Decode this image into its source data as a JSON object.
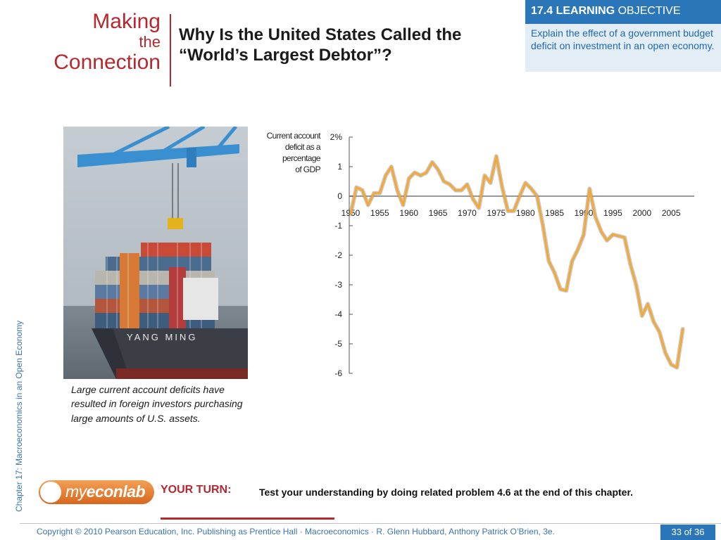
{
  "header": {
    "section": {
      "line1": "Making",
      "line2": "the",
      "line3": "Connection"
    },
    "title": "Why Is the United States Called the “World’s Largest Debtor”?"
  },
  "learning_objective": {
    "label_bold": "17.4 LEARNING",
    "label_rest": "OBJECTIVE",
    "text": "Explain the effect of a government budget deficit on investment in an open economy."
  },
  "sidebar_text": "Chapter 17:  Macroeconomics in an Open Economy",
  "photo": {
    "ship_name": "YANG MING",
    "caption": "Large current account deficits have resulted in foreign investors purchasing large amounts of U.S. assets."
  },
  "chart_data": {
    "type": "line",
    "ylabel": "Current account deficit as a percentage of GDP",
    "y_ticks": [
      "2%",
      "1",
      "0",
      "-1",
      "-2",
      "-3",
      "-4",
      "-5",
      "-6"
    ],
    "ylim": [
      -6,
      2
    ],
    "x_ticks": [
      "1950",
      "1955",
      "1960",
      "1965",
      "1970",
      "1975",
      "1980",
      "1985",
      "1990",
      "1995",
      "2000",
      "2005"
    ],
    "xlim": [
      1950,
      2008
    ],
    "color": "#f2a93b",
    "series": [
      {
        "x": [
          1950,
          1951,
          1952,
          1953,
          1954,
          1955,
          1956,
          1957,
          1958,
          1959,
          1960,
          1961,
          1962,
          1963,
          1964,
          1965,
          1966,
          1967,
          1968,
          1969,
          1970,
          1971,
          1972,
          1973,
          1974,
          1975,
          1976,
          1977,
          1978,
          1979,
          1980,
          1981,
          1982,
          1983,
          1984,
          1985,
          1986,
          1987,
          1988,
          1989,
          1990,
          1991,
          1992,
          1993,
          1994,
          1995,
          1996,
          1997,
          1998,
          1999,
          2000,
          2001,
          2002,
          2003,
          2004,
          2005,
          2006,
          2007
        ],
        "y": [
          -0.6,
          0.3,
          0.2,
          -0.3,
          0.1,
          0.1,
          0.7,
          1.0,
          0.2,
          -0.3,
          0.6,
          0.8,
          0.7,
          0.8,
          1.15,
          0.9,
          0.5,
          0.4,
          0.2,
          0.2,
          0.4,
          -0.1,
          -0.4,
          0.7,
          0.45,
          1.35,
          0.3,
          -0.5,
          -0.5,
          0.0,
          0.45,
          0.25,
          0.0,
          -1.0,
          -2.2,
          -2.6,
          -3.15,
          -3.2,
          -2.2,
          -1.8,
          -1.3,
          0.25,
          -0.7,
          -1.2,
          -1.5,
          -1.3,
          -1.35,
          -1.4,
          -2.3,
          -3.0,
          -4.05,
          -3.65,
          -4.25,
          -4.6,
          -5.3,
          -5.7,
          -5.8,
          -4.5
        ]
      }
    ]
  },
  "your_turn": {
    "label": "YOUR TURN:",
    "text": "Test your understanding by doing related problem 4.6 at the end of this chapter.",
    "logo_my": "my",
    "logo_rest": "econlab"
  },
  "footer": {
    "copyright": "Copyright © 2010 Pearson Education, Inc. Publishing as Prentice Hall · Macroeconomics · R. Glenn Hubbard, Anthony Patrick O’Brien, 3e.",
    "page": "33 of 36"
  }
}
